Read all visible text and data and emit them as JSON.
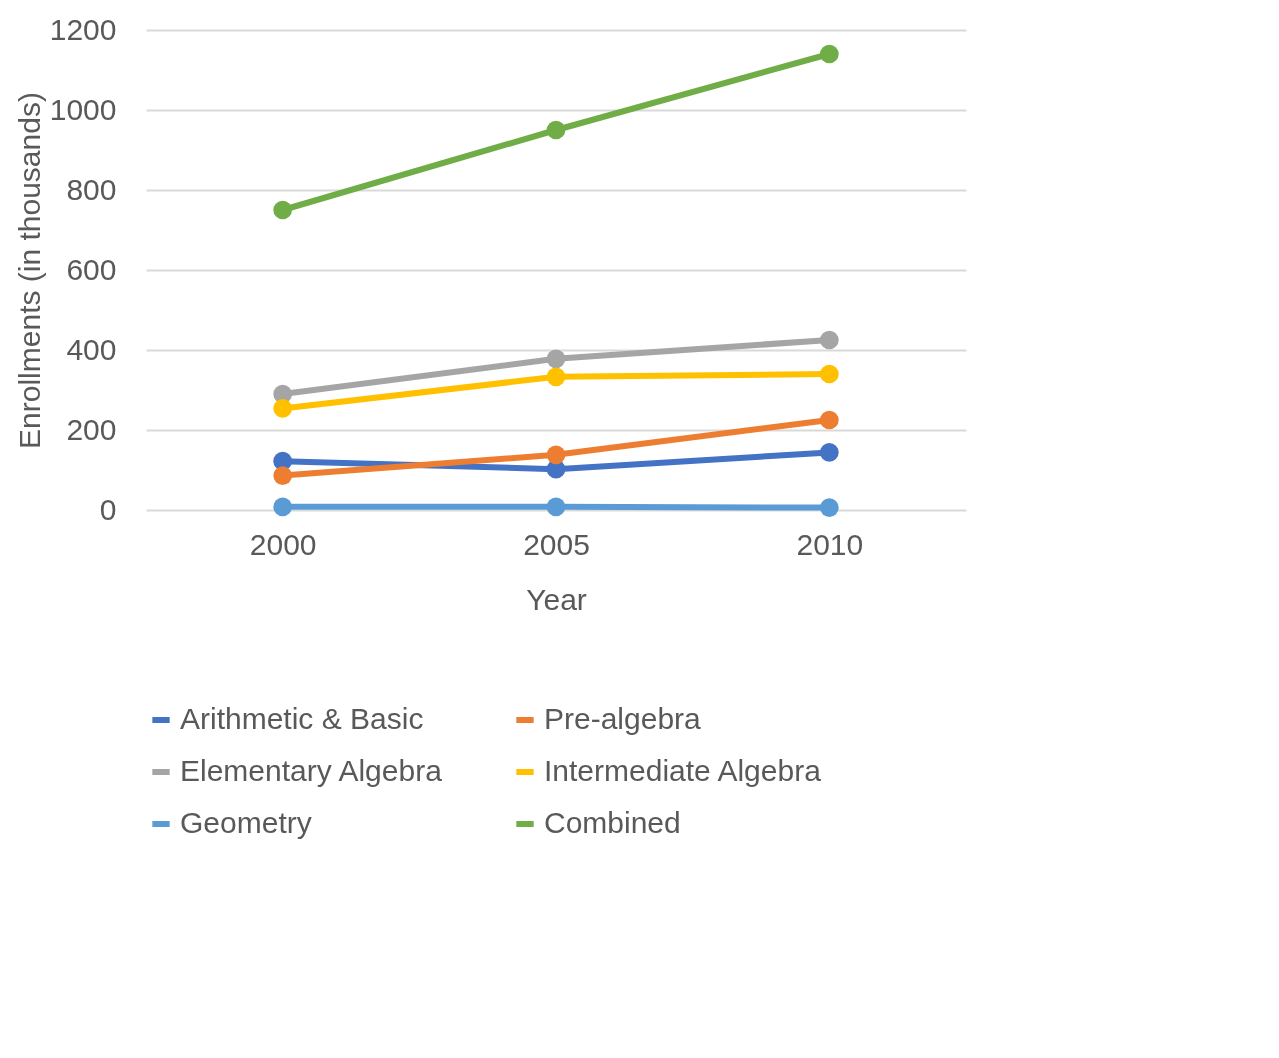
{
  "chart_data": {
    "type": "line",
    "xlabel": "Year",
    "ylabel": "Enrollments (in thousands)",
    "categories": [
      "2000",
      "2005",
      "2010"
    ],
    "series": [
      {
        "name": "Arithmetic & Basic",
        "color": "#4472c4",
        "values": [
          122,
          102,
          144
        ]
      },
      {
        "name": "Pre-algebra",
        "color": "#ed7d31",
        "values": [
          86,
          138,
          225
        ]
      },
      {
        "name": "Elementary Algebra",
        "color": "#a5a5a5",
        "values": [
          290,
          378,
          425
        ]
      },
      {
        "name": "Intermediate Algebra",
        "color": "#ffc000",
        "values": [
          254,
          333,
          340
        ]
      },
      {
        "name": "Geometry",
        "color": "#5b9bd5",
        "values": [
          8,
          8,
          6
        ]
      },
      {
        "name": "Combined",
        "color": "#70ad47",
        "values": [
          750,
          950,
          1140
        ]
      }
    ],
    "ylim": [
      0,
      1200
    ],
    "yticks": [
      0,
      200,
      400,
      600,
      800,
      1000,
      1200
    ],
    "grid": "y",
    "legend": "bottom",
    "marker": "circle",
    "line_style": "solid"
  }
}
